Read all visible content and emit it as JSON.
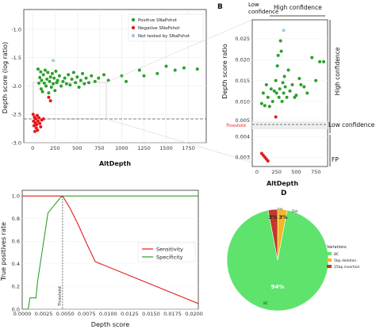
{
  "panels": {
    "a": {
      "letter": "",
      "xlabel": "AltDepth",
      "ylabel": "Depth score (log ratio)",
      "xticks": [
        "0",
        "250",
        "500",
        "750",
        "1000",
        "1250",
        "1500",
        "1750"
      ],
      "yticks": [
        "-1.0",
        "-1.5",
        "-2.0",
        "-2.5",
        "-3.0"
      ],
      "legend": [
        "Positive SNaPshot",
        "Negative SNaPshot",
        "Not tested by SNaPshot"
      ]
    },
    "b": {
      "letter": "B",
      "xlabel": "AltDepth",
      "ylabel": "Depth score ratio",
      "xticks": [
        "0",
        "250",
        "500",
        "750"
      ],
      "yticks": [
        "0.025",
        "0.020",
        "0.015",
        "0.010",
        "0.005",
        "0.004",
        "0.003"
      ],
      "threshold_label": "Threshold",
      "top_low": "Low\nconfidence",
      "top_high": "High confidence",
      "right_high": "High confidence",
      "right_low": "Low confidence",
      "right_fp": "FP"
    },
    "c": {
      "letter": "",
      "xlabel": "Depth score",
      "ylabel": "True positives rate",
      "xticks": [
        "0.0000",
        "0.0025",
        "0.0050",
        "0.0075",
        "0.0100",
        "0.0125",
        "0.0150",
        "0.0175",
        "0.0200"
      ],
      "yticks": [
        "0.0",
        "0.2",
        "0.4",
        "0.6",
        "0.8",
        "1.0"
      ],
      "threshold_label": "Threshold",
      "legend": [
        "Sensitivity",
        "Specificity"
      ]
    },
    "d": {
      "letter": "D",
      "legend_title": "Variations",
      "legend": [
        "BC",
        "5bp deletion",
        "25bp insertion"
      ],
      "slice_labels": [
        "94%",
        "3%",
        "3%"
      ],
      "outer_labels": [
        "BC",
        "Del",
        "Ins"
      ]
    }
  },
  "colors": {
    "positive": "#2ca02c",
    "negative": "#e41a1c",
    "not_tested": "#9ecae1",
    "sensitivity": "#e41a1c",
    "specificity": "#2ca02c",
    "pie_bc": "#5ee36c",
    "pie_del": "#f2b824",
    "pie_ins": "#c0392b"
  },
  "chart_data": [
    {
      "type": "scatter",
      "xlabel": "AltDepth",
      "ylabel": "Depth score (log ratio)",
      "xlim": [
        -100,
        1950
      ],
      "ylim": [
        -3.0,
        -0.65
      ],
      "threshold_y": -2.38,
      "legend_position": "top-left",
      "series": [
        {
          "name": "Positive SNaPshot",
          "points": [
            [
              60,
              -1.7
            ],
            [
              70,
              -1.95
            ],
            [
              80,
              -1.85
            ],
            [
              90,
              -1.75
            ],
            [
              95,
              -2.05
            ],
            [
              100,
              -1.9
            ],
            [
              110,
              -2.1
            ],
            [
              120,
              -1.8
            ],
            [
              130,
              -1.95
            ],
            [
              140,
              -1.72
            ],
            [
              150,
              -2.0
            ],
            [
              160,
              -1.88
            ],
            [
              170,
              -1.76
            ],
            [
              180,
              -2.12
            ],
            [
              190,
              -1.92
            ],
            [
              200,
              -1.84
            ],
            [
              210,
              -2.02
            ],
            [
              220,
              -1.78
            ],
            [
              230,
              -1.96
            ],
            [
              240,
              -1.86
            ],
            [
              250,
              -2.08
            ],
            [
              260,
              -1.74
            ],
            [
              270,
              -1.94
            ],
            [
              280,
              -1.9
            ],
            [
              300,
              -1.82
            ],
            [
              320,
              -2.0
            ],
            [
              340,
              -1.92
            ],
            [
              360,
              -1.86
            ],
            [
              380,
              -1.96
            ],
            [
              400,
              -1.8
            ],
            [
              420,
              -1.98
            ],
            [
              440,
              -1.88
            ],
            [
              460,
              -1.76
            ],
            [
              480,
              -1.94
            ],
            [
              500,
              -1.84
            ],
            [
              520,
              -2.02
            ],
            [
              540,
              -1.9
            ],
            [
              560,
              -1.78
            ],
            [
              580,
              -1.96
            ],
            [
              600,
              -1.86
            ],
            [
              630,
              -1.94
            ],
            [
              660,
              -1.82
            ],
            [
              700,
              -1.92
            ],
            [
              740,
              -1.86
            ],
            [
              800,
              -1.8
            ],
            [
              850,
              -1.9
            ],
            [
              1000,
              -1.82
            ],
            [
              1050,
              -1.92
            ],
            [
              1200,
              -1.72
            ],
            [
              1250,
              -1.82
            ],
            [
              1400,
              -1.78
            ],
            [
              1500,
              -1.65
            ],
            [
              1600,
              -1.72
            ],
            [
              1700,
              -1.68
            ],
            [
              1850,
              -1.7
            ]
          ]
        },
        {
          "name": "Negative SNaPshot",
          "points": [
            [
              5,
              -2.5
            ],
            [
              10,
              -2.62
            ],
            [
              15,
              -2.7
            ],
            [
              20,
              -2.55
            ],
            [
              25,
              -2.8
            ],
            [
              30,
              -2.65
            ],
            [
              35,
              -2.58
            ],
            [
              40,
              -2.74
            ],
            [
              45,
              -2.68
            ],
            [
              50,
              -2.52
            ],
            [
              55,
              -2.78
            ],
            [
              60,
              -2.62
            ],
            [
              70,
              -2.56
            ],
            [
              80,
              -2.66
            ],
            [
              90,
              -2.72
            ],
            [
              100,
              -2.6
            ],
            [
              120,
              -2.58
            ],
            [
              180,
              -2.2
            ],
            [
              200,
              -2.26
            ]
          ]
        },
        {
          "name": "Not tested by SNaPshot",
          "points": [
            [
              230,
              -1.55
            ]
          ]
        }
      ]
    },
    {
      "type": "scatter",
      "xlabel": "AltDepth",
      "ylabel": "Depth score ratio",
      "xlim": [
        -60,
        900
      ],
      "threshold_y": 0.0045,
      "series": [
        {
          "name": "Positive SNaPshot",
          "points": [
            [
              60,
              0.0095
            ],
            [
              80,
              0.012
            ],
            [
              100,
              0.009
            ],
            [
              120,
              0.014
            ],
            [
              140,
              0.011
            ],
            [
              160,
              0.0088
            ],
            [
              180,
              0.013
            ],
            [
              200,
              0.01
            ],
            [
              220,
              0.0125
            ],
            [
              240,
              0.015
            ],
            [
              250,
              0.012
            ],
            [
              260,
              0.0185
            ],
            [
              270,
              0.021
            ],
            [
              280,
              0.011
            ],
            [
              290,
              0.013
            ],
            [
              300,
              0.0245
            ],
            [
              310,
              0.022
            ],
            [
              320,
              0.01
            ],
            [
              330,
              0.0145
            ],
            [
              340,
              0.012
            ],
            [
              350,
              0.016
            ],
            [
              360,
              0.0135
            ],
            [
              380,
              0.011
            ],
            [
              400,
              0.0175
            ],
            [
              420,
              0.0125
            ],
            [
              450,
              0.014
            ],
            [
              480,
              0.011
            ],
            [
              500,
              0.0115
            ],
            [
              540,
              0.0155
            ],
            [
              560,
              0.014
            ],
            [
              600,
              0.0135
            ],
            [
              640,
              0.012
            ],
            [
              700,
              0.0205
            ],
            [
              750,
              0.015
            ],
            [
              800,
              0.0195
            ],
            [
              850,
              0.0195
            ]
          ]
        },
        {
          "name": "Negative SNaPshot",
          "points": [
            [
              60,
              0.0032
            ],
            [
              80,
              0.0031
            ],
            [
              100,
              0.003
            ],
            [
              120,
              0.0029
            ],
            [
              140,
              0.0028
            ],
            [
              240,
              0.0063
            ]
          ]
        },
        {
          "name": "Not tested by SNaPshot",
          "points": [
            [
              340,
              0.027
            ]
          ]
        }
      ]
    },
    {
      "type": "line",
      "xlabel": "Depth score",
      "ylabel": "True positives rate",
      "xlim": [
        0,
        0.0205
      ],
      "ylim": [
        0,
        1.05
      ],
      "threshold_x": 0.0047,
      "legend_position": "right",
      "series": [
        {
          "name": "Sensitivity",
          "x": [
            0,
            0.0047,
            0.0055,
            0.0065,
            0.0075,
            0.0085,
            0.0205
          ],
          "y": [
            1.0,
            1.0,
            0.9,
            0.75,
            0.58,
            0.42,
            0.05
          ]
        },
        {
          "name": "Specificity",
          "x": [
            0,
            0.0007,
            0.0009,
            0.0016,
            0.0018,
            0.003,
            0.0045,
            0.0048,
            0.0205
          ],
          "y": [
            0.0,
            0.0,
            0.1,
            0.1,
            0.25,
            0.85,
            0.99,
            1.0,
            1.0
          ]
        }
      ]
    },
    {
      "type": "pie",
      "categories": [
        "BC",
        "5bp deletion",
        "25bp insertion"
      ],
      "values": [
        94,
        3,
        3
      ]
    }
  ]
}
